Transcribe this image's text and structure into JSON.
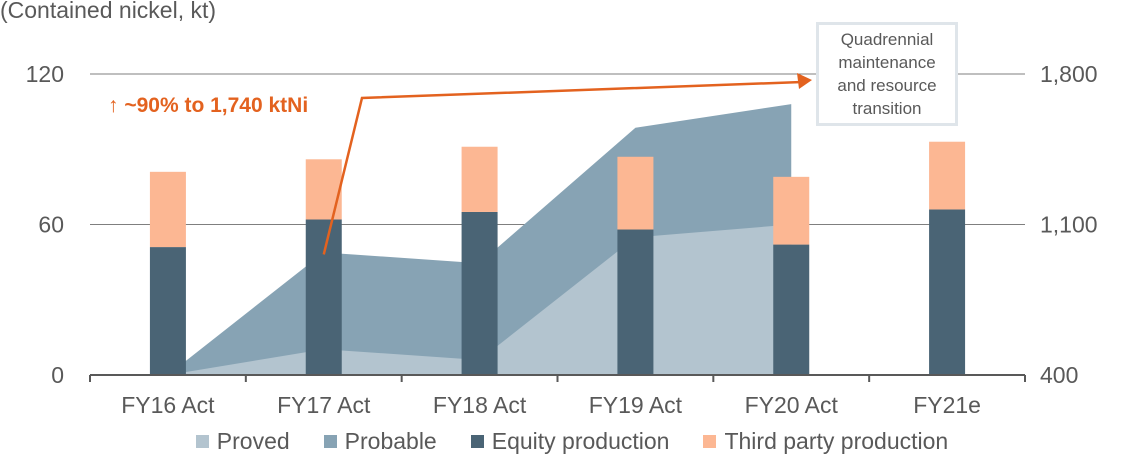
{
  "subtitle": "(Contained nickel, kt)",
  "growth_note": "↑ ~90% to 1,740 ktNi",
  "callout": "Quadrennial maintenance and resource transition",
  "colors": {
    "proved": "#b3c4cf",
    "probable": "#87a3b4",
    "equity": "#4a6475",
    "third_party": "#fcb793",
    "arrow": "#e3621f",
    "grid": "#7f7f7f"
  },
  "chart_data": {
    "type": "bar",
    "categories": [
      "FY16 Act",
      "FY17 Act",
      "FY18 Act",
      "FY19 Act",
      "FY20 Act",
      "FY21e"
    ],
    "left_axis": {
      "ylim": [
        0,
        120
      ],
      "ticks": [
        "0",
        "60",
        "120"
      ]
    },
    "right_axis": {
      "ylim": [
        400,
        1800
      ],
      "ticks": [
        "400",
        "1,100",
        "1,800"
      ]
    },
    "bar_series": [
      {
        "name": "Equity production",
        "axis": "left",
        "values": [
          51,
          62,
          65,
          58,
          52,
          66
        ]
      },
      {
        "name": "Third party production",
        "axis": "left",
        "values": [
          30,
          24,
          26,
          29,
          27,
          27
        ]
      }
    ],
    "area_series": [
      {
        "name": "Proved",
        "axis": "right",
        "values": [
          null,
          520,
          470,
          1040,
          1100,
          null
        ]
      },
      {
        "name": "Probable",
        "axis": "right",
        "values": [
          null,
          450,
          450,
          510,
          560,
          null
        ]
      }
    ],
    "area_start_x": "FY16 Act",
    "grid": true,
    "legend_position": "bottom"
  },
  "legend": [
    {
      "label": "Proved",
      "color_key": "proved"
    },
    {
      "label": "Probable",
      "color_key": "probable"
    },
    {
      "label": "Equity production",
      "color_key": "equity"
    },
    {
      "label": "Third party production",
      "color_key": "third_party"
    }
  ]
}
